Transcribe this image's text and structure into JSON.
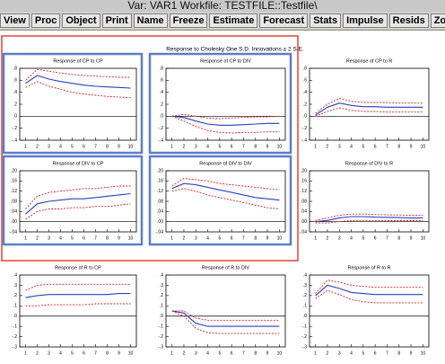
{
  "window": {
    "title": "Var: VAR1   Workfile: TESTFILE::Testfile\\"
  },
  "toolbar": {
    "buttons": [
      "View",
      "Proc",
      "Object",
      "Print",
      "Name",
      "Freeze",
      "Estimate",
      "Forecast",
      "Stats",
      "Impulse",
      "Resids",
      "Zoom"
    ]
  },
  "figure": {
    "title": "Response to Cholesky One S.D. Innovations ± 2 S.E."
  },
  "chart_data": [
    {
      "type": "line",
      "title": "Response of CP to CP",
      "selected": true,
      "zero_line": true,
      "x": [
        1,
        2,
        3,
        4,
        5,
        6,
        7,
        8,
        9,
        10
      ],
      "xlim": [
        0.5,
        10.5
      ],
      "ylim": [
        -0.4,
        0.8
      ],
      "yticks": [
        {
          "value": -0.4,
          "label": "-.4"
        },
        {
          "value": -0.2,
          "label": "-.2"
        },
        {
          "value": 0,
          "label": ".0"
        },
        {
          "value": 0.2,
          "label": ".2"
        },
        {
          "value": 0.4,
          "label": ".4"
        },
        {
          "value": 0.6,
          "label": ".6"
        },
        {
          "value": 0.8,
          "label": ".8"
        }
      ],
      "series": [
        {
          "color": "#e02020",
          "line_style": "dashed",
          "values": [
            0.6,
            0.78,
            0.75,
            0.72,
            0.7,
            0.68,
            0.67,
            0.66,
            0.65,
            0.65
          ]
        },
        {
          "color": "#2a3fbf",
          "line_style": "solid",
          "values": [
            0.55,
            0.68,
            0.62,
            0.58,
            0.55,
            0.52,
            0.5,
            0.49,
            0.48,
            0.47
          ]
        },
        {
          "color": "#e02020",
          "line_style": "dashed",
          "values": [
            0.48,
            0.58,
            0.5,
            0.45,
            0.4,
            0.37,
            0.35,
            0.33,
            0.32,
            0.31
          ]
        }
      ]
    },
    {
      "type": "line",
      "title": "Response of CP to DIV",
      "selected": true,
      "zero_line": true,
      "x": [
        1,
        2,
        3,
        4,
        5,
        6,
        7,
        8,
        9,
        10
      ],
      "xlim": [
        0.5,
        10.5
      ],
      "ylim": [
        -0.4,
        0.8
      ],
      "yticks": [
        {
          "value": -0.4,
          "label": "-.4"
        },
        {
          "value": -0.2,
          "label": "-.2"
        },
        {
          "value": 0,
          "label": ".0"
        },
        {
          "value": 0.2,
          "label": ".2"
        },
        {
          "value": 0.4,
          "label": ".4"
        },
        {
          "value": 0.6,
          "label": ".6"
        },
        {
          "value": 0.8,
          "label": ".8"
        }
      ],
      "series": [
        {
          "color": "#e02020",
          "line_style": "dashed",
          "values": [
            0,
            0.03,
            0,
            -0.03,
            -0.04,
            -0.03,
            -0.02,
            -0.01,
            -0.01,
            0
          ]
        },
        {
          "color": "#2a3fbf",
          "line_style": "solid",
          "values": [
            0,
            -0.02,
            -0.08,
            -0.13,
            -0.15,
            -0.15,
            -0.14,
            -0.13,
            -0.12,
            -0.12
          ]
        },
        {
          "color": "#e02020",
          "line_style": "dashed",
          "values": [
            0,
            -0.08,
            -0.17,
            -0.24,
            -0.27,
            -0.28,
            -0.27,
            -0.27,
            -0.26,
            -0.26
          ]
        }
      ]
    },
    {
      "type": "line",
      "title": "Response of CP to R",
      "selected": false,
      "zero_line": true,
      "x": [
        1,
        2,
        3,
        4,
        5,
        6,
        7,
        8,
        9,
        10
      ],
      "xlim": [
        0.5,
        10.5
      ],
      "ylim": [
        -0.4,
        0.8
      ],
      "yticks": [
        {
          "value": -0.4,
          "label": "-.4"
        },
        {
          "value": -0.2,
          "label": "-.2"
        },
        {
          "value": 0,
          "label": ".0"
        },
        {
          "value": 0.2,
          "label": ".2"
        },
        {
          "value": 0.4,
          "label": ".4"
        },
        {
          "value": 0.6,
          "label": ".6"
        },
        {
          "value": 0.8,
          "label": ".8"
        }
      ],
      "series": [
        {
          "color": "#e02020",
          "line_style": "dashed",
          "values": [
            0.05,
            0.2,
            0.3,
            0.25,
            0.23,
            0.23,
            0.23,
            0.22,
            0.22,
            0.22
          ]
        },
        {
          "color": "#2a3fbf",
          "line_style": "solid",
          "values": [
            0.02,
            0.15,
            0.22,
            0.18,
            0.16,
            0.16,
            0.15,
            0.15,
            0.15,
            0.15
          ]
        },
        {
          "color": "#e02020",
          "line_style": "dashed",
          "values": [
            0,
            0.08,
            0.14,
            0.1,
            0.08,
            0.08,
            0.07,
            0.07,
            0.07,
            0.07
          ]
        }
      ]
    },
    {
      "type": "line",
      "title": "Response of DIV to CP",
      "selected": true,
      "zero_line": true,
      "x": [
        1,
        2,
        3,
        4,
        5,
        6,
        7,
        8,
        9,
        10
      ],
      "xlim": [
        0.5,
        10.5
      ],
      "ylim": [
        -0.04,
        0.2
      ],
      "yticks": [
        {
          "value": -0.04,
          "label": "-.04"
        },
        {
          "value": 0,
          "label": ".00"
        },
        {
          "value": 0.04,
          "label": ".04"
        },
        {
          "value": 0.08,
          "label": ".08"
        },
        {
          "value": 0.12,
          "label": ".12"
        },
        {
          "value": 0.16,
          "label": ".16"
        },
        {
          "value": 0.2,
          "label": ".20"
        }
      ],
      "series": [
        {
          "color": "#e02020",
          "line_style": "dashed",
          "values": [
            0.05,
            0.1,
            0.115,
            0.12,
            0.125,
            0.13,
            0.13,
            0.135,
            0.14,
            0.14
          ]
        },
        {
          "color": "#2a3fbf",
          "line_style": "solid",
          "values": [
            0.03,
            0.07,
            0.08,
            0.085,
            0.09,
            0.09,
            0.095,
            0.1,
            0.105,
            0.11
          ]
        },
        {
          "color": "#e02020",
          "line_style": "dashed",
          "values": [
            0.01,
            0.04,
            0.05,
            0.05,
            0.055,
            0.055,
            0.06,
            0.06,
            0.065,
            0.07
          ]
        }
      ]
    },
    {
      "type": "line",
      "title": "Response of DIV to DIV",
      "selected": true,
      "zero_line": true,
      "x": [
        1,
        2,
        3,
        4,
        5,
        6,
        7,
        8,
        9,
        10
      ],
      "xlim": [
        0.5,
        10.5
      ],
      "ylim": [
        -0.04,
        0.2
      ],
      "yticks": [
        {
          "value": -0.04,
          "label": "-.04"
        },
        {
          "value": 0,
          "label": ".00"
        },
        {
          "value": 0.04,
          "label": ".04"
        },
        {
          "value": 0.08,
          "label": ".08"
        },
        {
          "value": 0.12,
          "label": ".12"
        },
        {
          "value": 0.16,
          "label": ".16"
        },
        {
          "value": 0.2,
          "label": ".20"
        }
      ],
      "series": [
        {
          "color": "#e02020",
          "line_style": "dashed",
          "values": [
            0.14,
            0.17,
            0.165,
            0.16,
            0.15,
            0.145,
            0.14,
            0.135,
            0.13,
            0.125
          ]
        },
        {
          "color": "#2a3fbf",
          "line_style": "solid",
          "values": [
            0.13,
            0.15,
            0.145,
            0.135,
            0.125,
            0.115,
            0.105,
            0.095,
            0.09,
            0.085
          ]
        },
        {
          "color": "#e02020",
          "line_style": "dashed",
          "values": [
            0.12,
            0.13,
            0.12,
            0.105,
            0.095,
            0.085,
            0.075,
            0.065,
            0.055,
            0.05
          ]
        }
      ]
    },
    {
      "type": "line",
      "title": "Response of DIV to R",
      "selected": false,
      "zero_line": true,
      "x": [
        1,
        2,
        3,
        4,
        5,
        6,
        7,
        8,
        9,
        10
      ],
      "xlim": [
        0.5,
        10.5
      ],
      "ylim": [
        -0.04,
        0.2
      ],
      "yticks": [
        {
          "value": -0.04,
          "label": "-.04"
        },
        {
          "value": 0,
          "label": ".00"
        },
        {
          "value": 0.04,
          "label": ".04"
        },
        {
          "value": 0.08,
          "label": ".08"
        },
        {
          "value": 0.12,
          "label": ".12"
        },
        {
          "value": 0.16,
          "label": ".16"
        },
        {
          "value": 0.2,
          "label": ".20"
        }
      ],
      "series": [
        {
          "color": "#e02020",
          "line_style": "dashed",
          "values": [
            0.005,
            0.015,
            0.025,
            0.03,
            0.03,
            0.028,
            0.027,
            0.026,
            0.025,
            0.025
          ]
        },
        {
          "color": "#2a3fbf",
          "line_style": "solid",
          "values": [
            0,
            0.005,
            0.015,
            0.02,
            0.02,
            0.018,
            0.017,
            0.016,
            0.015,
            0.015
          ]
        },
        {
          "color": "#e02020",
          "line_style": "dashed",
          "values": [
            -0.005,
            -0.005,
            0,
            0.005,
            0.005,
            0.005,
            0.004,
            0.004,
            0.004,
            0.004
          ]
        }
      ]
    },
    {
      "type": "line",
      "title": "Response of R to CP",
      "selected": false,
      "zero_line": true,
      "x": [
        1,
        2,
        3,
        4,
        5,
        6,
        7,
        8,
        9,
        10
      ],
      "xlim": [
        0.5,
        10.5
      ],
      "ylim": [
        -0.3,
        0.4
      ],
      "yticks": [
        {
          "value": -0.3,
          "label": "-.3"
        },
        {
          "value": -0.2,
          "label": "-.2"
        },
        {
          "value": -0.1,
          "label": "-.1"
        },
        {
          "value": 0,
          "label": ".0"
        },
        {
          "value": 0.1,
          "label": ".1"
        },
        {
          "value": 0.2,
          "label": ".2"
        },
        {
          "value": 0.3,
          "label": ".3"
        },
        {
          "value": 0.4,
          "label": ".4"
        }
      ],
      "series": [
        {
          "color": "#e02020",
          "line_style": "dashed",
          "values": [
            0.25,
            0.3,
            0.31,
            0.31,
            0.31,
            0.31,
            0.31,
            0.31,
            0.31,
            0.31
          ]
        },
        {
          "color": "#2a3fbf",
          "line_style": "solid",
          "values": [
            0.18,
            0.2,
            0.21,
            0.21,
            0.21,
            0.21,
            0.21,
            0.21,
            0.22,
            0.22
          ]
        },
        {
          "color": "#e02020",
          "line_style": "dashed",
          "values": [
            0.1,
            0.1,
            0.11,
            0.11,
            0.11,
            0.11,
            0.12,
            0.12,
            0.12,
            0.12
          ]
        }
      ]
    },
    {
      "type": "line",
      "title": "Response of R to DIV",
      "selected": false,
      "zero_line": true,
      "x": [
        1,
        2,
        3,
        4,
        5,
        6,
        7,
        8,
        9,
        10
      ],
      "xlim": [
        0.5,
        10.5
      ],
      "ylim": [
        -0.3,
        0.4
      ],
      "yticks": [
        {
          "value": -0.3,
          "label": "-.3"
        },
        {
          "value": -0.2,
          "label": "-.2"
        },
        {
          "value": -0.1,
          "label": "-.1"
        },
        {
          "value": 0,
          "label": ".0"
        },
        {
          "value": 0.1,
          "label": ".1"
        },
        {
          "value": 0.2,
          "label": ".2"
        },
        {
          "value": 0.3,
          "label": ".3"
        },
        {
          "value": 0.4,
          "label": ".4"
        }
      ],
      "series": [
        {
          "color": "#e02020",
          "line_style": "dashed",
          "values": [
            0.05,
            0.05,
            -0.02,
            -0.04,
            -0.04,
            -0.04,
            -0.04,
            -0.04,
            -0.04,
            -0.04
          ]
        },
        {
          "color": "#2a3fbf",
          "line_style": "solid",
          "values": [
            0.05,
            0.03,
            -0.07,
            -0.1,
            -0.1,
            -0.1,
            -0.1,
            -0.1,
            -0.1,
            -0.1
          ]
        },
        {
          "color": "#e02020",
          "line_style": "dashed",
          "values": [
            0.05,
            0,
            -0.12,
            -0.16,
            -0.17,
            -0.17,
            -0.17,
            -0.17,
            -0.17,
            -0.17
          ]
        }
      ]
    },
    {
      "type": "line",
      "title": "Response of R to R",
      "selected": false,
      "zero_line": true,
      "x": [
        1,
        2,
        3,
        4,
        5,
        6,
        7,
        8,
        9,
        10
      ],
      "xlim": [
        0.5,
        10.5
      ],
      "ylim": [
        -0.3,
        0.4
      ],
      "yticks": [
        {
          "value": -0.3,
          "label": "-.3"
        },
        {
          "value": -0.2,
          "label": "-.2"
        },
        {
          "value": -0.1,
          "label": "-.1"
        },
        {
          "value": 0,
          "label": ".0"
        },
        {
          "value": 0.1,
          "label": ".1"
        },
        {
          "value": 0.2,
          "label": ".2"
        },
        {
          "value": 0.3,
          "label": ".3"
        },
        {
          "value": 0.4,
          "label": ".4"
        }
      ],
      "series": [
        {
          "color": "#e02020",
          "line_style": "dashed",
          "values": [
            0.22,
            0.35,
            0.33,
            0.3,
            0.29,
            0.28,
            0.28,
            0.28,
            0.28,
            0.28
          ]
        },
        {
          "color": "#2a3fbf",
          "line_style": "solid",
          "values": [
            0.2,
            0.3,
            0.27,
            0.23,
            0.22,
            0.21,
            0.21,
            0.21,
            0.21,
            0.21
          ]
        },
        {
          "color": "#e02020",
          "line_style": "dashed",
          "values": [
            0.17,
            0.25,
            0.21,
            0.16,
            0.14,
            0.13,
            0.13,
            0.13,
            0.13,
            0.13
          ]
        }
      ]
    }
  ]
}
